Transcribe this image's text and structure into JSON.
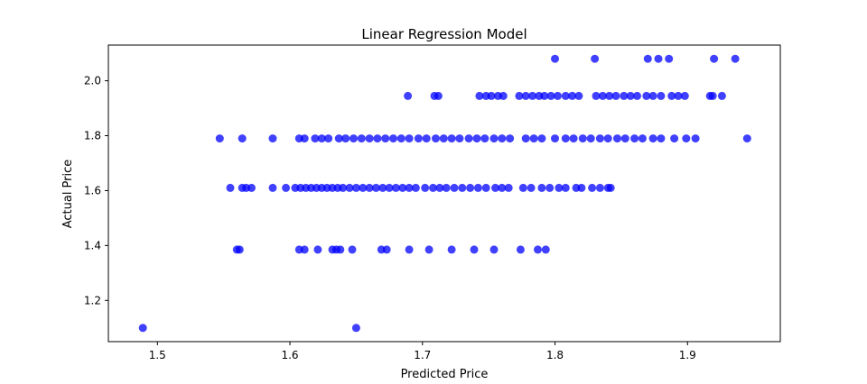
{
  "chart_data": {
    "type": "scatter",
    "title": "Linear Regression Model",
    "xlabel": "Predicted Price",
    "ylabel": "Actual Price",
    "xlim": [
      1.463,
      1.97
    ],
    "ylim": [
      1.05,
      2.13
    ],
    "xticks": [
      "1.5",
      "1.6",
      "1.7",
      "1.8",
      "1.9"
    ],
    "xtick_values": [
      1.5,
      1.6,
      1.7,
      1.8,
      1.9
    ],
    "yticks": [
      "1.2",
      "1.4",
      "1.6",
      "1.8",
      "2.0"
    ],
    "ytick_values": [
      1.2,
      1.4,
      1.6,
      1.8,
      2.0
    ],
    "grid": false,
    "marker_color": "#0000ff",
    "points": [
      {
        "x": 1.489,
        "y": 1.1
      },
      {
        "x": 1.65,
        "y": 1.1
      },
      {
        "x": 1.56,
        "y": 1.385
      },
      {
        "x": 1.562,
        "y": 1.385
      },
      {
        "x": 1.607,
        "y": 1.385
      },
      {
        "x": 1.611,
        "y": 1.385
      },
      {
        "x": 1.621,
        "y": 1.385
      },
      {
        "x": 1.632,
        "y": 1.385
      },
      {
        "x": 1.635,
        "y": 1.385
      },
      {
        "x": 1.638,
        "y": 1.385
      },
      {
        "x": 1.647,
        "y": 1.385
      },
      {
        "x": 1.669,
        "y": 1.385
      },
      {
        "x": 1.673,
        "y": 1.385
      },
      {
        "x": 1.69,
        "y": 1.385
      },
      {
        "x": 1.705,
        "y": 1.385
      },
      {
        "x": 1.722,
        "y": 1.385
      },
      {
        "x": 1.739,
        "y": 1.385
      },
      {
        "x": 1.754,
        "y": 1.385
      },
      {
        "x": 1.774,
        "y": 1.385
      },
      {
        "x": 1.787,
        "y": 1.385
      },
      {
        "x": 1.793,
        "y": 1.385
      },
      {
        "x": 1.555,
        "y": 1.61
      },
      {
        "x": 1.564,
        "y": 1.61
      },
      {
        "x": 1.567,
        "y": 1.61
      },
      {
        "x": 1.571,
        "y": 1.61
      },
      {
        "x": 1.587,
        "y": 1.61
      },
      {
        "x": 1.597,
        "y": 1.61
      },
      {
        "x": 1.604,
        "y": 1.61
      },
      {
        "x": 1.608,
        "y": 1.61
      },
      {
        "x": 1.612,
        "y": 1.61
      },
      {
        "x": 1.616,
        "y": 1.61
      },
      {
        "x": 1.62,
        "y": 1.61
      },
      {
        "x": 1.624,
        "y": 1.61
      },
      {
        "x": 1.628,
        "y": 1.61
      },
      {
        "x": 1.632,
        "y": 1.61
      },
      {
        "x": 1.636,
        "y": 1.61
      },
      {
        "x": 1.64,
        "y": 1.61
      },
      {
        "x": 1.645,
        "y": 1.61
      },
      {
        "x": 1.65,
        "y": 1.61
      },
      {
        "x": 1.655,
        "y": 1.61
      },
      {
        "x": 1.66,
        "y": 1.61
      },
      {
        "x": 1.665,
        "y": 1.61
      },
      {
        "x": 1.67,
        "y": 1.61
      },
      {
        "x": 1.675,
        "y": 1.61
      },
      {
        "x": 1.68,
        "y": 1.61
      },
      {
        "x": 1.685,
        "y": 1.61
      },
      {
        "x": 1.69,
        "y": 1.61
      },
      {
        "x": 1.695,
        "y": 1.61
      },
      {
        "x": 1.702,
        "y": 1.61
      },
      {
        "x": 1.708,
        "y": 1.61
      },
      {
        "x": 1.713,
        "y": 1.61
      },
      {
        "x": 1.718,
        "y": 1.61
      },
      {
        "x": 1.724,
        "y": 1.61
      },
      {
        "x": 1.73,
        "y": 1.61
      },
      {
        "x": 1.736,
        "y": 1.61
      },
      {
        "x": 1.742,
        "y": 1.61
      },
      {
        "x": 1.748,
        "y": 1.61
      },
      {
        "x": 1.755,
        "y": 1.61
      },
      {
        "x": 1.76,
        "y": 1.61
      },
      {
        "x": 1.765,
        "y": 1.61
      },
      {
        "x": 1.776,
        "y": 1.61
      },
      {
        "x": 1.782,
        "y": 1.61
      },
      {
        "x": 1.79,
        "y": 1.61
      },
      {
        "x": 1.796,
        "y": 1.61
      },
      {
        "x": 1.803,
        "y": 1.61
      },
      {
        "x": 1.808,
        "y": 1.61
      },
      {
        "x": 1.816,
        "y": 1.61
      },
      {
        "x": 1.82,
        "y": 1.61
      },
      {
        "x": 1.828,
        "y": 1.61
      },
      {
        "x": 1.834,
        "y": 1.61
      },
      {
        "x": 1.84,
        "y": 1.61
      },
      {
        "x": 1.842,
        "y": 1.61
      },
      {
        "x": 1.547,
        "y": 1.79
      },
      {
        "x": 1.564,
        "y": 1.79
      },
      {
        "x": 1.587,
        "y": 1.79
      },
      {
        "x": 1.607,
        "y": 1.79
      },
      {
        "x": 1.611,
        "y": 1.79
      },
      {
        "x": 1.619,
        "y": 1.79
      },
      {
        "x": 1.624,
        "y": 1.79
      },
      {
        "x": 1.629,
        "y": 1.79
      },
      {
        "x": 1.637,
        "y": 1.79
      },
      {
        "x": 1.642,
        "y": 1.79
      },
      {
        "x": 1.648,
        "y": 1.79
      },
      {
        "x": 1.654,
        "y": 1.79
      },
      {
        "x": 1.66,
        "y": 1.79
      },
      {
        "x": 1.666,
        "y": 1.79
      },
      {
        "x": 1.672,
        "y": 1.79
      },
      {
        "x": 1.678,
        "y": 1.79
      },
      {
        "x": 1.684,
        "y": 1.79
      },
      {
        "x": 1.69,
        "y": 1.79
      },
      {
        "x": 1.697,
        "y": 1.79
      },
      {
        "x": 1.703,
        "y": 1.79
      },
      {
        "x": 1.71,
        "y": 1.79
      },
      {
        "x": 1.716,
        "y": 1.79
      },
      {
        "x": 1.722,
        "y": 1.79
      },
      {
        "x": 1.728,
        "y": 1.79
      },
      {
        "x": 1.735,
        "y": 1.79
      },
      {
        "x": 1.741,
        "y": 1.79
      },
      {
        "x": 1.747,
        "y": 1.79
      },
      {
        "x": 1.754,
        "y": 1.79
      },
      {
        "x": 1.76,
        "y": 1.79
      },
      {
        "x": 1.766,
        "y": 1.79
      },
      {
        "x": 1.778,
        "y": 1.79
      },
      {
        "x": 1.784,
        "y": 1.79
      },
      {
        "x": 1.79,
        "y": 1.79
      },
      {
        "x": 1.8,
        "y": 1.79
      },
      {
        "x": 1.808,
        "y": 1.79
      },
      {
        "x": 1.814,
        "y": 1.79
      },
      {
        "x": 1.821,
        "y": 1.79
      },
      {
        "x": 1.827,
        "y": 1.79
      },
      {
        "x": 1.834,
        "y": 1.79
      },
      {
        "x": 1.84,
        "y": 1.79
      },
      {
        "x": 1.847,
        "y": 1.79
      },
      {
        "x": 1.853,
        "y": 1.79
      },
      {
        "x": 1.86,
        "y": 1.79
      },
      {
        "x": 1.866,
        "y": 1.79
      },
      {
        "x": 1.874,
        "y": 1.79
      },
      {
        "x": 1.88,
        "y": 1.79
      },
      {
        "x": 1.89,
        "y": 1.79
      },
      {
        "x": 1.899,
        "y": 1.79
      },
      {
        "x": 1.906,
        "y": 1.79
      },
      {
        "x": 1.945,
        "y": 1.79
      },
      {
        "x": 1.689,
        "y": 1.945
      },
      {
        "x": 1.709,
        "y": 1.945
      },
      {
        "x": 1.712,
        "y": 1.945
      },
      {
        "x": 1.743,
        "y": 1.945
      },
      {
        "x": 1.748,
        "y": 1.945
      },
      {
        "x": 1.752,
        "y": 1.945
      },
      {
        "x": 1.757,
        "y": 1.945
      },
      {
        "x": 1.761,
        "y": 1.945
      },
      {
        "x": 1.773,
        "y": 1.945
      },
      {
        "x": 1.778,
        "y": 1.945
      },
      {
        "x": 1.783,
        "y": 1.945
      },
      {
        "x": 1.788,
        "y": 1.945
      },
      {
        "x": 1.792,
        "y": 1.945
      },
      {
        "x": 1.797,
        "y": 1.945
      },
      {
        "x": 1.802,
        "y": 1.945
      },
      {
        "x": 1.808,
        "y": 1.945
      },
      {
        "x": 1.813,
        "y": 1.945
      },
      {
        "x": 1.818,
        "y": 1.945
      },
      {
        "x": 1.831,
        "y": 1.945
      },
      {
        "x": 1.836,
        "y": 1.945
      },
      {
        "x": 1.841,
        "y": 1.945
      },
      {
        "x": 1.846,
        "y": 1.945
      },
      {
        "x": 1.852,
        "y": 1.945
      },
      {
        "x": 1.857,
        "y": 1.945
      },
      {
        "x": 1.862,
        "y": 1.945
      },
      {
        "x": 1.869,
        "y": 1.945
      },
      {
        "x": 1.874,
        "y": 1.945
      },
      {
        "x": 1.88,
        "y": 1.945
      },
      {
        "x": 1.888,
        "y": 1.945
      },
      {
        "x": 1.893,
        "y": 1.945
      },
      {
        "x": 1.898,
        "y": 1.945
      },
      {
        "x": 1.917,
        "y": 1.945
      },
      {
        "x": 1.919,
        "y": 1.945
      },
      {
        "x": 1.926,
        "y": 1.945
      },
      {
        "x": 1.8,
        "y": 2.08
      },
      {
        "x": 1.83,
        "y": 2.08
      },
      {
        "x": 1.87,
        "y": 2.08
      },
      {
        "x": 1.878,
        "y": 2.08
      },
      {
        "x": 1.886,
        "y": 2.08
      },
      {
        "x": 1.92,
        "y": 2.08
      },
      {
        "x": 1.936,
        "y": 2.08
      }
    ]
  }
}
